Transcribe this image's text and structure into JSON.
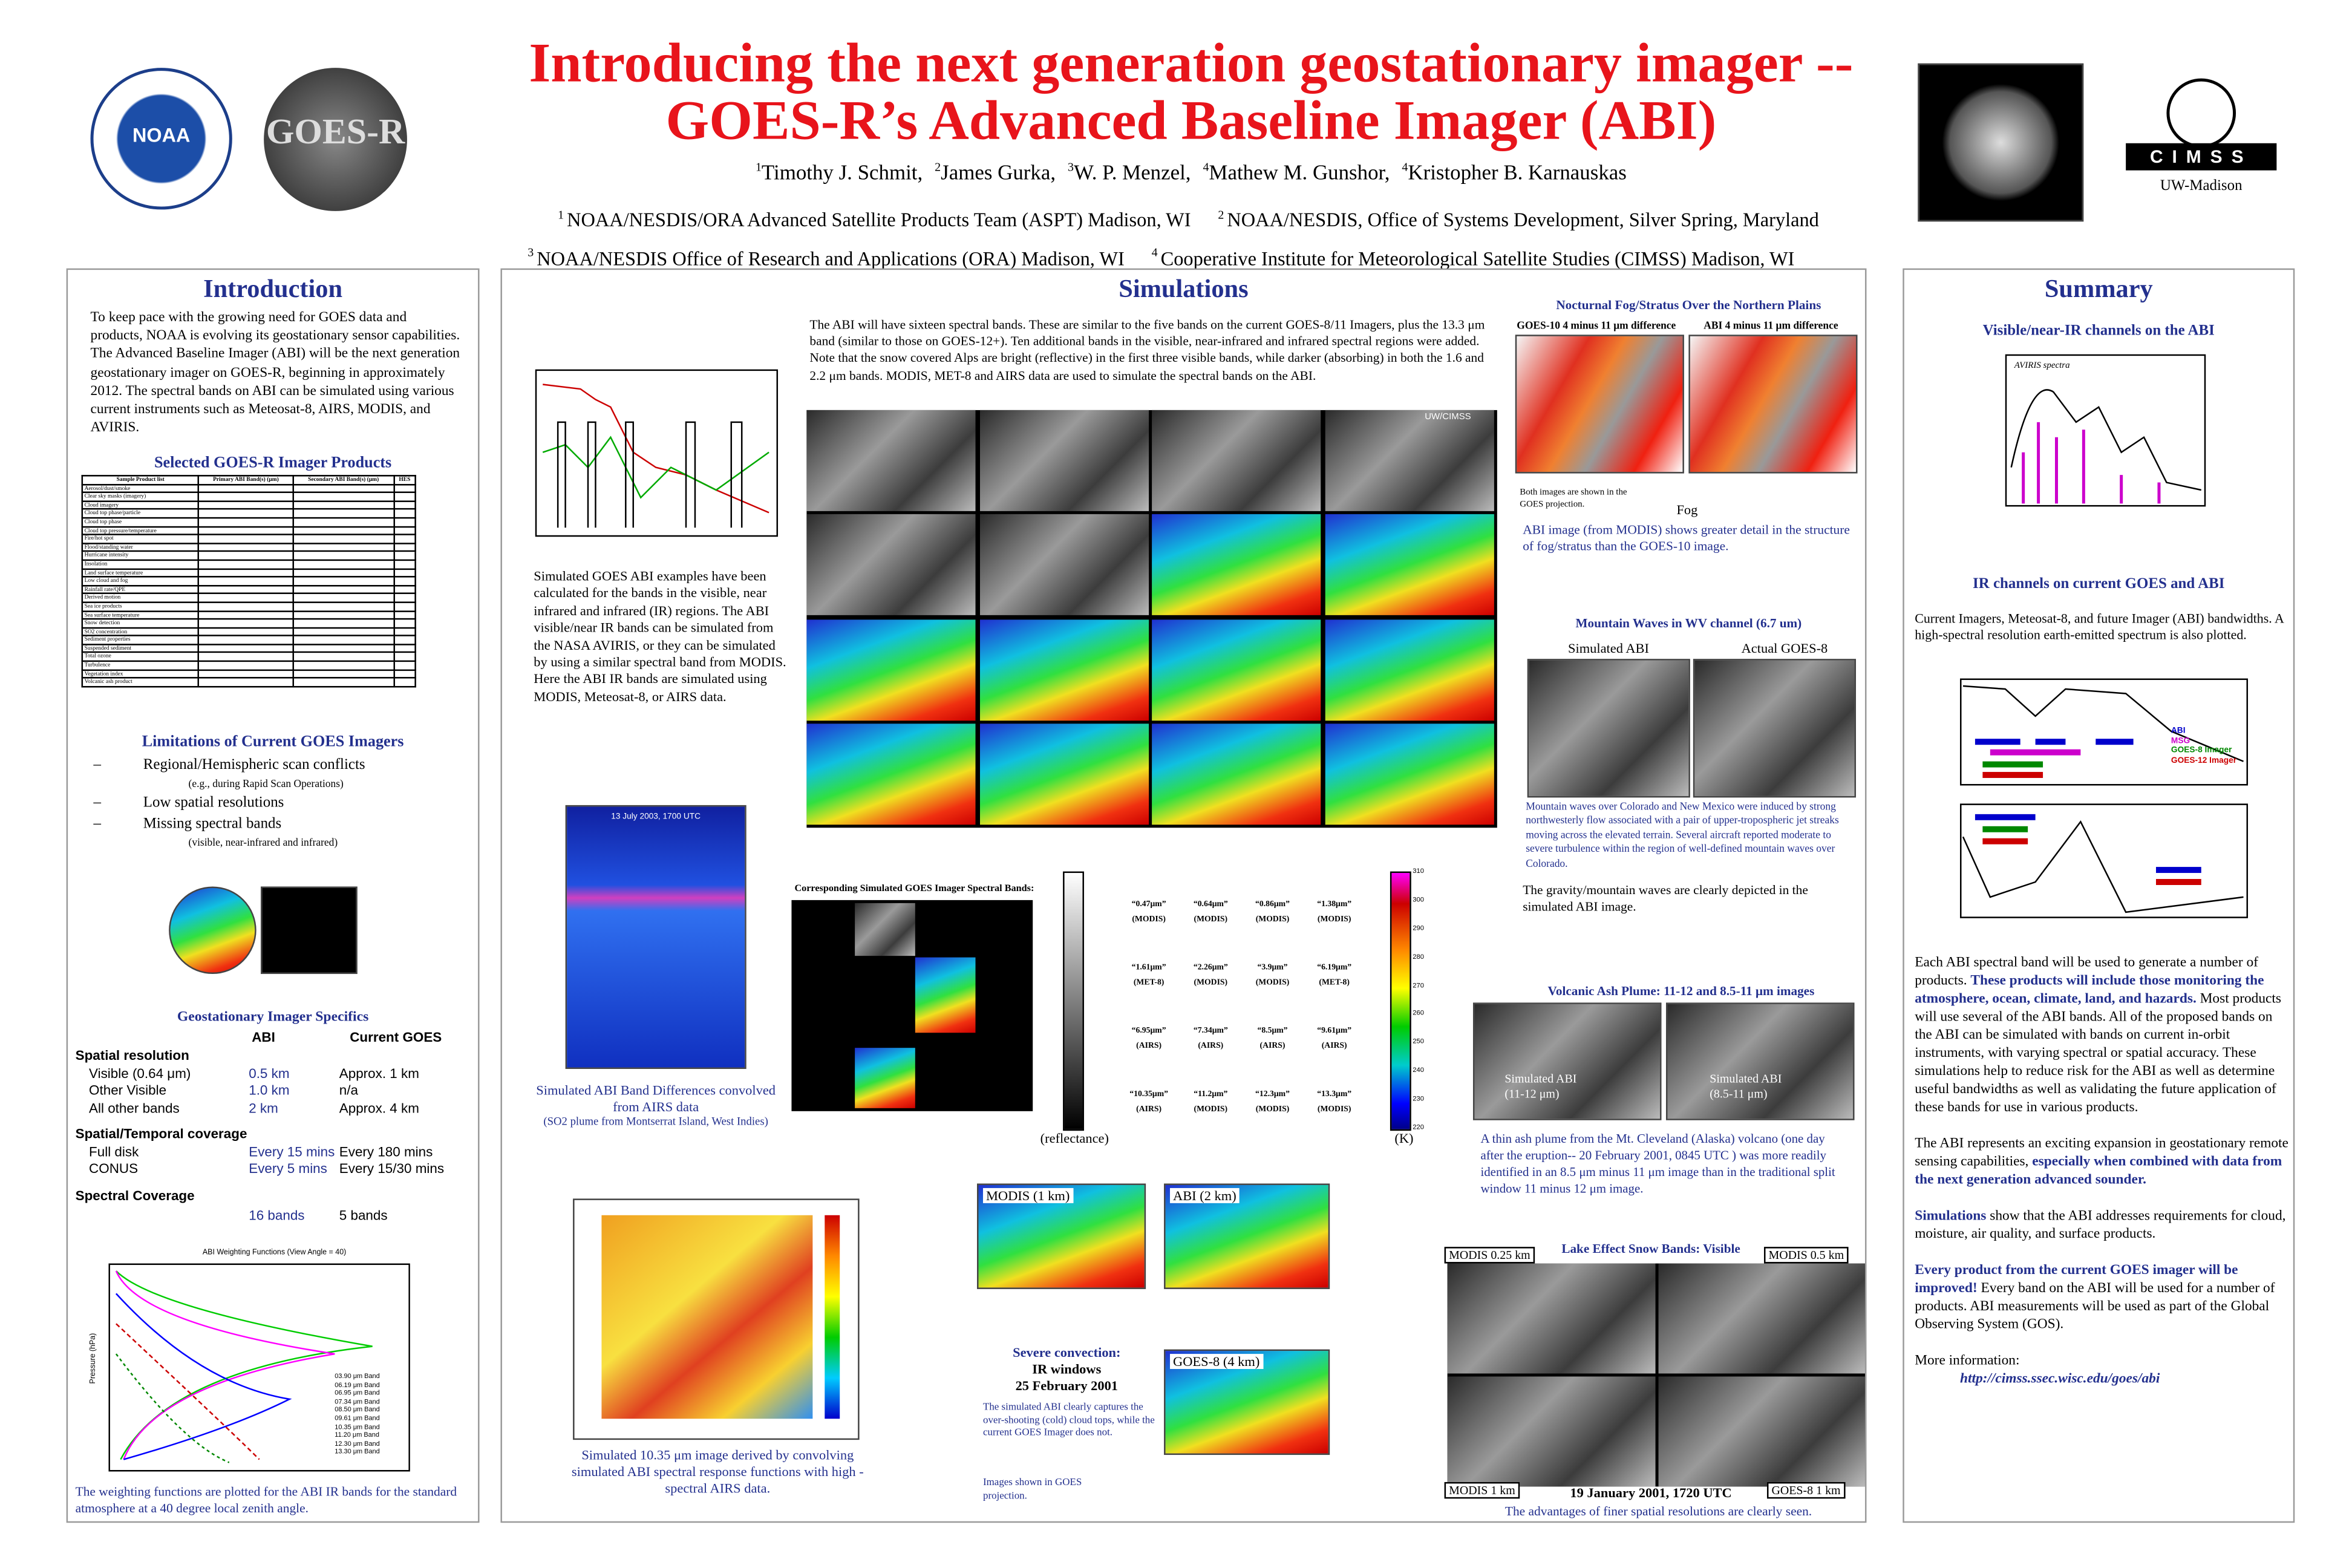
{
  "header": {
    "title_line1": "Introducing the next generation geostationary imager --",
    "title_line2": "GOES-R’s Advanced Baseline Imager (ABI)",
    "authors": [
      {
        "sup": "1",
        "name": "Timothy J. Schmit,"
      },
      {
        "sup": "2",
        "name": "James Gurka,"
      },
      {
        "sup": "3",
        "name": "W. P. Menzel,"
      },
      {
        "sup": "4",
        "name": "Mathew M. Gunshor,"
      },
      {
        "sup": "4",
        "name": "Kristopher B. Karnauskas"
      }
    ],
    "affiliations": [
      {
        "sup": "1",
        "text": "NOAA/NESDIS/ORA  Advanced Satellite Products Team (ASPT)  Madison, WI"
      },
      {
        "sup": "2",
        "text": "NOAA/NESDIS, Office of Systems Development, Silver Spring, Maryland"
      },
      {
        "sup": "3",
        "text": "NOAA/NESDIS Office of Research and Applications (ORA) Madison, WI"
      },
      {
        "sup": "4",
        "text": "Cooperative Institute for Meteorological Satellite Studies (CIMSS)  Madison, WI"
      }
    ],
    "noaa": "NOAA",
    "goesr": "GOES-R",
    "cimss": "CIMSS",
    "uw": "UW-Madison"
  },
  "intro": {
    "heading": "Introduction",
    "text": "To keep pace with the growing need for GOES data and products, NOAA is evolving its geostationary sensor capabilities. The Advanced Baseline Imager (ABI) will be the next generation geostationary imager on GOES-R, beginning in approximately 2012.  The spectral bands on ABI can be simulated using various current instruments such as Meteosat-8, AIRS, MODIS, and AVIRIS.",
    "products_heading": "Selected GOES-R Imager Products",
    "table_header": [
      "Sample Product list",
      "Primary ABI Band(s) (μm)",
      "Secondary ABI Band(s) (μm)",
      "HES"
    ],
    "table_rows": [
      "Aerosol/dust/smoke",
      "Clear sky masks (imagery)",
      "Cloud imagery",
      "Cloud top phase/particle",
      "Cloud top phase",
      "Cloud top pressure/temperature",
      "Fire/hot spot",
      "Flood/standing water",
      "Hurricane intensity",
      "Insolation",
      "Land surface temperature",
      "Low cloud and fog",
      "Rainfall rate/QPE",
      "Derived motion",
      "Sea ice products",
      "Sea surface temperature",
      "Snow detection",
      "SO2 concentration",
      "Sediment properties",
      "Suspended sediment",
      "Total ozone",
      "Turbulence",
      "Vegetation index",
      "Volcanic ash product"
    ],
    "limitations_heading": "Limitations of Current GOES  Imagers",
    "limitations": [
      {
        "text": "Regional/Hemispheric scan conflicts",
        "note": "(e.g., during Rapid Scan Operations)"
      },
      {
        "text": "Low spatial resolutions"
      },
      {
        "text": "Missing spectral bands",
        "note": "(visible, near-infrared and infrared)"
      }
    ],
    "specifics_heading": "Geostationary Imager Specifics",
    "col_abi": "ABI",
    "col_goes": "Current GOES",
    "specifics": [
      {
        "heading": "Spatial resolution",
        "rows": [
          [
            "Visible (0.64 μm)",
            "0.5 km",
            "Approx. 1 km"
          ],
          [
            "Other Visible",
            "1.0 km",
            "n/a"
          ],
          [
            "All other bands",
            "2 km",
            "Approx. 4 km"
          ]
        ]
      },
      {
        "heading": "Spatial/Temporal coverage",
        "rows": [
          [
            "Full disk",
            "Every 15 mins",
            "Every 180 mins"
          ],
          [
            "CONUS",
            "Every  5 mins",
            "Every 15/30 mins"
          ]
        ]
      }
    ],
    "spectral": {
      "heading": "Spectral Coverage",
      "abi": "16 bands",
      "goes": "5 bands"
    },
    "wf_title": "ABI Weighting Functions (View Angle = 40)",
    "wf_ylabel": "Pressure (hPa)",
    "wf_legend": [
      "03.90 μm Band",
      "06.19 μm Band",
      "06.95 μm Band",
      "07.34 μm Band",
      "08.50 μm Band",
      "09.61 μm Band",
      "10.35 μm Band",
      "11.20 μm Band",
      "12.30 μm Band",
      "13.30 μm Band"
    ],
    "wf_caption": "The weighting functions are plotted for the ABI IR bands for the standard atmosphere at a 40 degree local zenith angle."
  },
  "sim": {
    "heading": "Simulations",
    "text": "The ABI will have sixteen spectral bands. These are similar to the five bands on the current GOES-8/11 Imagers, plus the 13.3 μm band (similar to those on GOES-12+). Ten additional bands in the visible, near-infrared and infrared spectral regions were added. Note that the snow covered Alps are bright (reflective) in the first three visible bands, while darker (absorbing) in both the 1.6 and 2.2 μm bands. MODIS, MET-8 and AIRS data are used to simulate the spectral bands on the ABI.",
    "side_text": "Simulated GOES ABI examples have been calculated for the bands in the visible, near infrared and infrared (IR) regions.  The ABI visible/near IR bands can be simulated from the NASA AVIRIS, or they can be simulated by using a similar spectral band from MODIS.   Here the ABI IR bands are simulated using MODIS, Meteosat-8, or AIRS data.",
    "uwcimss": "UW/CIMSS",
    "airs_date": "13 July 2003, 1700 UTC",
    "airs_caption": "Simulated ABI Band Differences convolved from AIRS data",
    "airs_note": "(SO2 plume from Montserrat Island, West Indies)",
    "corr_label": "Corresponding Simulated GOES Imager Spectral Bands:",
    "bands": [
      [
        "“0.47μm”",
        "(MODIS)"
      ],
      [
        "“0.64μm”",
        "(MODIS)"
      ],
      [
        "“0.86μm”",
        "(MODIS)"
      ],
      [
        "“1.38μm”",
        "(MODIS)"
      ],
      [
        "“1.61μm”",
        "(MET-8)"
      ],
      [
        "“2.26μm”",
        "(MODIS)"
      ],
      [
        "“3.9μm”",
        "(MODIS)"
      ],
      [
        "“6.19μm”",
        "(MET-8)"
      ],
      [
        "“6.95μm”",
        "(AIRS)"
      ],
      [
        "“7.34μm”",
        "(AIRS)"
      ],
      [
        "“8.5μm”",
        "(AIRS)"
      ],
      [
        "“9.61μm”",
        "(AIRS)"
      ],
      [
        "“10.35μm”",
        "(AIRS)"
      ],
      [
        "“11.2μm”",
        "(MODIS)"
      ],
      [
        "“12.3μm”",
        "(MODIS)"
      ],
      [
        "“13.3μm”",
        "(MODIS)"
      ]
    ],
    "refl": "(reflectance)",
    "kelvin": "(K)",
    "kticks": [
      310,
      300,
      290,
      280,
      270,
      260,
      250,
      240,
      230,
      220
    ],
    "airs1035_caption": "Simulated 10.35 μm image derived by convolving simulated ABI spectral response functions with high -spectral AIRS data.",
    "modis1": "MODIS (1 km)",
    "abi2": "ABI (2 km)",
    "goes8": "GOES-8 (4 km)",
    "severe_title": "Severe convection:",
    "severe_sub": "IR windows",
    "severe_date": "25 February 2001",
    "severe_text": "The simulated ABI clearly captures the over-shooting (cold) cloud tops, while the current GOES Imager does not.",
    "severe_note": "Images shown in GOES projection."
  },
  "fog": {
    "heading": "Nocturnal Fog/Stratus Over the Northern Plains",
    "left": "GOES-10  4 minus 11 μm difference",
    "right": "ABI  4 minus 11 μm difference",
    "note": "Both images are shown in the GOES projection.",
    "fog": "Fog",
    "caption": "ABI image (from MODIS) shows greater detail in the structure of fog/stratus than the GOES-10 image."
  },
  "waves": {
    "heading": "Mountain Waves in WV channel (6.7 um)",
    "left": "Simulated ABI",
    "right": "Actual GOES-8",
    "text": "Mountain waves over Colorado and New Mexico were induced by strong northwesterly flow associated with a pair of upper-tropospheric jet streaks moving across the elevated terrain. Several aircraft reported moderate to severe turbulence within the region of well-defined mountain waves over Colorado.",
    "caption": "The gravity/mountain waves are clearly depicted in the simulated ABI image."
  },
  "ash": {
    "heading": "Volcanic Ash Plume:  11-12 and 8.5-11 μm images",
    "left": "Simulated ABI (11-12 μm)",
    "right": "Simulated ABI (8.5-11 μm)",
    "text": "A thin ash plume from the Mt. Cleveland (Alaska) volcano (one day after the eruption-- 20 February 2001, 0845 UTC ) was more readily identified in an 8.5 μm minus 11 μm image than in the traditional split window 11 minus 12 μm image."
  },
  "lake": {
    "heading": "Lake Effect Snow Bands: Visible",
    "tl": "MODIS  0.25 km",
    "tr": "MODIS  0.5 km",
    "bl": "MODIS 1 km",
    "br": "GOES-8  1 km",
    "date": "19 January 2001, 1720 UTC",
    "caption": "The advantages of finer spatial resolutions are clearly seen."
  },
  "summary": {
    "heading": "Summary",
    "vis_heading": "Visible/near-IR channels on the ABI",
    "aviris": "AVIRIS spectra",
    "ir_heading": "IR channels on current GOES and ABI",
    "ir_text": "Current Imagers, Meteosat-8, and future Imager (ABI) bandwidths.  A high-spectral resolution earth-emitted spectrum is also plotted.",
    "ir_legend": [
      "ABI",
      "MSG",
      "GOES-8 Imager",
      "GOES-12 Imager"
    ],
    "paragraphs": [
      [
        {
          "text": "Each ABI spectral band will be used to generate a number of products. "
        },
        {
          "text": "These products will include those monitoring the atmosphere, ocean, climate, land, and hazards.",
          "bold": true
        },
        {
          "text": " Most products will use several of the ABI bands. All of the proposed bands on the ABI can be simulated with bands on current in-orbit instruments, with varying spectral or spatial accuracy.  These simulations help to reduce risk for the ABI as well as determine useful bandwidths as well as validating the future application of these bands for use in various products."
        }
      ],
      [
        {
          "text": "The ABI represents an exciting expansion in geostationary remote sensing capabilities, "
        },
        {
          "text": "especially when combined with data from the next generation advanced sounder.",
          "bold": true
        }
      ],
      [
        {
          "text": "Simulations",
          "bold": true
        },
        {
          "text": " show that the ABI  addresses requirements for cloud, moisture, air quality, and surface products."
        }
      ],
      [
        {
          "text": "Every product from the current GOES imager will be improved!",
          "bold": true
        },
        {
          "text": " Every band on the ABI will be used for a number of products. ABI measurements will be used as part of the Global Observing System (GOS)."
        }
      ]
    ],
    "more": "More information:",
    "url": "http://cimss.ssec.wisc.edu/goes/abi"
  }
}
